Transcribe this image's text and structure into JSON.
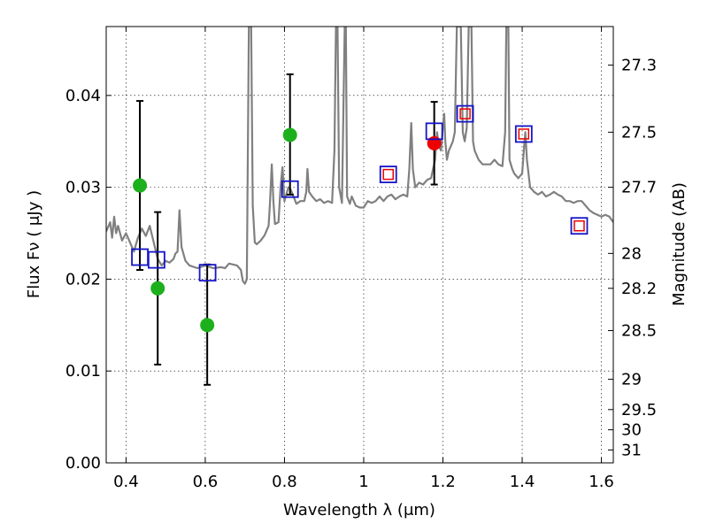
{
  "chart_data": {
    "type": "scatter",
    "title": "",
    "xlabel": "Wavelength  λ (μm)",
    "ylabel": "Flux  Fν  ( μJy )",
    "y2label": "Magnitude (AB)",
    "xlim": [
      0.35,
      1.63
    ],
    "ylim": [
      0.0,
      0.0475
    ],
    "grid": true,
    "x_ticks": [
      0.4,
      0.6,
      0.8,
      1.0,
      1.2,
      1.4,
      1.6
    ],
    "x_tick_labels": [
      "0.4",
      "0.6",
      "0.8",
      "1",
      "1.2",
      "1.4",
      "1.6"
    ],
    "y_ticks": [
      0.0,
      0.01,
      0.02,
      0.03,
      0.04
    ],
    "y_tick_labels": [
      "0.00",
      "0.01",
      "0.02",
      "0.03",
      "0.04"
    ],
    "y2_ticks": [
      {
        "label": "27.3",
        "flux": 0.0433
      },
      {
        "label": "27.5",
        "flux": 0.036
      },
      {
        "label": "27.7",
        "flux": 0.03
      },
      {
        "label": "28",
        "flux": 0.0228
      },
      {
        "label": "28.2",
        "flux": 0.019
      },
      {
        "label": "28.5",
        "flux": 0.0144
      },
      {
        "label": "29",
        "flux": 0.0091
      },
      {
        "label": "29.5",
        "flux": 0.0058
      },
      {
        "label": "30",
        "flux": 0.0036
      },
      {
        "label": "31",
        "flux": 0.0014
      }
    ],
    "series": [
      {
        "kind": "line",
        "color": "#808080",
        "points": [
          [
            0.35,
            0.0252
          ],
          [
            0.36,
            0.0262
          ],
          [
            0.365,
            0.0245
          ],
          [
            0.37,
            0.0268
          ],
          [
            0.375,
            0.025
          ],
          [
            0.38,
            0.0258
          ],
          [
            0.39,
            0.0242
          ],
          [
            0.4,
            0.025
          ],
          [
            0.41,
            0.024
          ],
          [
            0.42,
            0.023
          ],
          [
            0.43,
            0.0245
          ],
          [
            0.44,
            0.0255
          ],
          [
            0.45,
            0.0247
          ],
          [
            0.46,
            0.0258
          ],
          [
            0.47,
            0.024
          ],
          [
            0.48,
            0.0222
          ],
          [
            0.49,
            0.0215
          ],
          [
            0.5,
            0.022
          ],
          [
            0.51,
            0.0218
          ],
          [
            0.52,
            0.0222
          ],
          [
            0.525,
            0.0228
          ],
          [
            0.53,
            0.023
          ],
          [
            0.535,
            0.0275
          ],
          [
            0.54,
            0.0235
          ],
          [
            0.55,
            0.022
          ],
          [
            0.56,
            0.0215
          ],
          [
            0.58,
            0.0212
          ],
          [
            0.6,
            0.0215
          ],
          [
            0.62,
            0.0212
          ],
          [
            0.64,
            0.0213
          ],
          [
            0.65,
            0.0212
          ],
          [
            0.66,
            0.0217
          ],
          [
            0.68,
            0.0215
          ],
          [
            0.69,
            0.021
          ],
          [
            0.695,
            0.0198
          ],
          [
            0.7,
            0.0195
          ],
          [
            0.705,
            0.02
          ],
          [
            0.71,
            0.0475
          ],
          [
            0.716,
            0.0475
          ],
          [
            0.72,
            0.028
          ],
          [
            0.725,
            0.024
          ],
          [
            0.73,
            0.0238
          ],
          [
            0.74,
            0.0242
          ],
          [
            0.75,
            0.0248
          ],
          [
            0.76,
            0.0258
          ],
          [
            0.763,
            0.028
          ],
          [
            0.768,
            0.0325
          ],
          [
            0.772,
            0.0285
          ],
          [
            0.776,
            0.026
          ],
          [
            0.785,
            0.0262
          ],
          [
            0.79,
            0.03
          ],
          [
            0.795,
            0.0322
          ],
          [
            0.8,
            0.0285
          ],
          [
            0.81,
            0.03
          ],
          [
            0.815,
            0.0298
          ],
          [
            0.82,
            0.0293
          ],
          [
            0.83,
            0.0282
          ],
          [
            0.84,
            0.0285
          ],
          [
            0.85,
            0.0285
          ],
          [
            0.855,
            0.0295
          ],
          [
            0.858,
            0.032
          ],
          [
            0.862,
            0.0295
          ],
          [
            0.87,
            0.029
          ],
          [
            0.88,
            0.0285
          ],
          [
            0.89,
            0.0287
          ],
          [
            0.9,
            0.0283
          ],
          [
            0.91,
            0.0285
          ],
          [
            0.92,
            0.0283
          ],
          [
            0.926,
            0.034
          ],
          [
            0.93,
            0.0475
          ],
          [
            0.934,
            0.0475
          ],
          [
            0.938,
            0.03
          ],
          [
            0.945,
            0.0283
          ],
          [
            0.952,
            0.0475
          ],
          [
            0.955,
            0.0475
          ],
          [
            0.958,
            0.029
          ],
          [
            0.965,
            0.0282
          ],
          [
            0.97,
            0.029
          ],
          [
            0.98,
            0.028
          ],
          [
            0.99,
            0.0278
          ],
          [
            1.0,
            0.0278
          ],
          [
            1.01,
            0.0285
          ],
          [
            1.02,
            0.0283
          ],
          [
            1.03,
            0.0285
          ],
          [
            1.04,
            0.029
          ],
          [
            1.05,
            0.0285
          ],
          [
            1.06,
            0.029
          ],
          [
            1.07,
            0.0292
          ],
          [
            1.08,
            0.0287
          ],
          [
            1.09,
            0.029
          ],
          [
            1.1,
            0.0292
          ],
          [
            1.11,
            0.029
          ],
          [
            1.115,
            0.032
          ],
          [
            1.12,
            0.037
          ],
          [
            1.124,
            0.032
          ],
          [
            1.13,
            0.03
          ],
          [
            1.14,
            0.0305
          ],
          [
            1.15,
            0.0303
          ],
          [
            1.16,
            0.0308
          ],
          [
            1.17,
            0.031
          ],
          [
            1.18,
            0.033
          ],
          [
            1.185,
            0.036
          ],
          [
            1.19,
            0.0345
          ],
          [
            1.195,
            0.034
          ],
          [
            1.2,
            0.0365
          ],
          [
            1.203,
            0.038
          ],
          [
            1.206,
            0.035
          ],
          [
            1.21,
            0.033
          ],
          [
            1.215,
            0.034
          ],
          [
            1.22,
            0.0345
          ],
          [
            1.225,
            0.035
          ],
          [
            1.23,
            0.036
          ],
          [
            1.235,
            0.0475
          ],
          [
            1.245,
            0.0475
          ],
          [
            1.25,
            0.036
          ],
          [
            1.255,
            0.035
          ],
          [
            1.26,
            0.0365
          ],
          [
            1.265,
            0.0475
          ],
          [
            1.272,
            0.0475
          ],
          [
            1.276,
            0.035
          ],
          [
            1.28,
            0.034
          ],
          [
            1.29,
            0.033
          ],
          [
            1.3,
            0.0325
          ],
          [
            1.31,
            0.0325
          ],
          [
            1.32,
            0.0325
          ],
          [
            1.33,
            0.033
          ],
          [
            1.34,
            0.0325
          ],
          [
            1.35,
            0.0323
          ],
          [
            1.357,
            0.036
          ],
          [
            1.36,
            0.0475
          ],
          [
            1.365,
            0.0475
          ],
          [
            1.368,
            0.033
          ],
          [
            1.375,
            0.032
          ],
          [
            1.38,
            0.0315
          ],
          [
            1.39,
            0.031
          ],
          [
            1.4,
            0.0315
          ],
          [
            1.405,
            0.0345
          ],
          [
            1.408,
            0.036
          ],
          [
            1.412,
            0.033
          ],
          [
            1.42,
            0.03
          ],
          [
            1.43,
            0.0295
          ],
          [
            1.44,
            0.0292
          ],
          [
            1.45,
            0.0295
          ],
          [
            1.46,
            0.029
          ],
          [
            1.47,
            0.0292
          ],
          [
            1.48,
            0.0295
          ],
          [
            1.49,
            0.0292
          ],
          [
            1.5,
            0.029
          ],
          [
            1.51,
            0.0285
          ],
          [
            1.52,
            0.0285
          ],
          [
            1.53,
            0.0283
          ],
          [
            1.54,
            0.0285
          ],
          [
            1.55,
            0.0285
          ],
          [
            1.56,
            0.028
          ],
          [
            1.57,
            0.0275
          ],
          [
            1.58,
            0.0272
          ],
          [
            1.59,
            0.027
          ],
          [
            1.6,
            0.0268
          ],
          [
            1.61,
            0.027
          ],
          [
            1.62,
            0.0268
          ],
          [
            1.63,
            0.0262
          ]
        ]
      },
      {
        "kind": "points",
        "marker": "circle",
        "color": "#1db01d",
        "points": [
          {
            "x": 0.435,
            "y": 0.0302,
            "ylo": 0.021,
            "yhi": 0.0394
          },
          {
            "x": 0.48,
            "y": 0.019,
            "ylo": 0.0107,
            "yhi": 0.0273
          },
          {
            "x": 0.605,
            "y": 0.015,
            "ylo": 0.0085,
            "yhi": 0.0216
          },
          {
            "x": 0.814,
            "y": 0.0357,
            "ylo": 0.0292,
            "yhi": 0.0423
          }
        ]
      },
      {
        "kind": "points",
        "marker": "circle",
        "color": "#ee0000",
        "points": [
          {
            "x": 1.178,
            "y": 0.0348,
            "ylo": 0.0303,
            "yhi": 0.0393
          }
        ]
      },
      {
        "kind": "points",
        "marker": "square",
        "color": "#1515c8",
        "points": [
          {
            "x": 0.435,
            "y": 0.0224
          },
          {
            "x": 0.477,
            "y": 0.0221
          },
          {
            "x": 0.606,
            "y": 0.0207
          },
          {
            "x": 0.814,
            "y": 0.0298
          },
          {
            "x": 1.062,
            "y": 0.0314
          },
          {
            "x": 1.178,
            "y": 0.0361
          },
          {
            "x": 1.256,
            "y": 0.038
          },
          {
            "x": 1.404,
            "y": 0.0358
          },
          {
            "x": 1.544,
            "y": 0.0258
          }
        ]
      },
      {
        "kind": "points",
        "marker": "square",
        "color": "#ee0000",
        "points": [
          {
            "x": 1.062,
            "y": 0.0314
          },
          {
            "x": 1.256,
            "y": 0.038
          },
          {
            "x": 1.404,
            "y": 0.0358
          },
          {
            "x": 1.544,
            "y": 0.0258
          }
        ]
      }
    ]
  }
}
